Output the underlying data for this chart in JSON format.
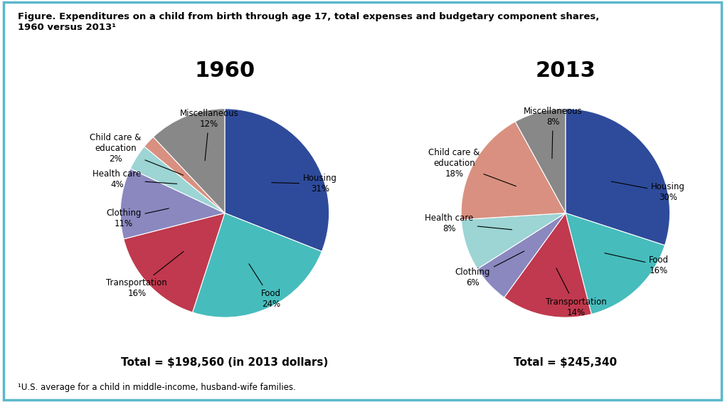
{
  "title": "Figure. Expenditures on a child from birth through age 17, total expenses and budgetary component shares,\n1960 versus 2013¹",
  "footnote": "¹U.S. average for a child in middle-income, husband-wife families.",
  "chart1_title": "1960",
  "chart2_title": "2013",
  "chart1_total": "Total = $198,560 (in 2013 dollars)",
  "chart2_total": "Total = $245,340",
  "chart1_values": [
    31,
    24,
    16,
    11,
    4,
    2,
    12
  ],
  "chart1_colors": [
    "#2E4B9B",
    "#47BCBC",
    "#C0394E",
    "#8A88BF",
    "#9DD4D4",
    "#D99080",
    "#888888"
  ],
  "chart2_values": [
    30,
    16,
    14,
    6,
    8,
    18,
    8
  ],
  "chart2_colors": [
    "#2E4B9B",
    "#47BCBC",
    "#C0394E",
    "#8A88BF",
    "#9DD4D4",
    "#D99080",
    "#888888"
  ],
  "background_color": "#FFFFFF",
  "border_color": "#5BB8CC",
  "label_color_1960": [
    [
      "Housing",
      "31%"
    ],
    [
      "Food",
      "24%"
    ],
    [
      "Transportation",
      "16%"
    ],
    [
      "Clothing",
      "11%"
    ],
    [
      "Health care",
      "4%"
    ],
    [
      "Child care &\neducation",
      "2%"
    ],
    [
      "Miscellaneous",
      "12%"
    ]
  ],
  "label_color_2013": [
    [
      "Housing",
      "30%"
    ],
    [
      "Food",
      "16%"
    ],
    [
      "Transportation",
      "14%"
    ],
    [
      "Clothing",
      "6%"
    ],
    [
      "Health care",
      "8%"
    ],
    [
      "Child care &\neducation",
      "18%"
    ],
    [
      "Miscellaneous",
      "8%"
    ]
  ],
  "title_fontsize": 9.5,
  "chart_title_fontsize": 22,
  "label_fontsize": 8.5,
  "total_fontsize": 11,
  "label_color": "#C46B00"
}
